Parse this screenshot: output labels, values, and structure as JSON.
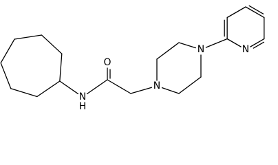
{
  "atoms": [
    {
      "label": "N"
    },
    {
      "label": "H"
    },
    {
      "label": "O"
    },
    {
      "label": "N"
    },
    {
      "label": "N"
    },
    {
      "label": "N"
    }
  ]
}
